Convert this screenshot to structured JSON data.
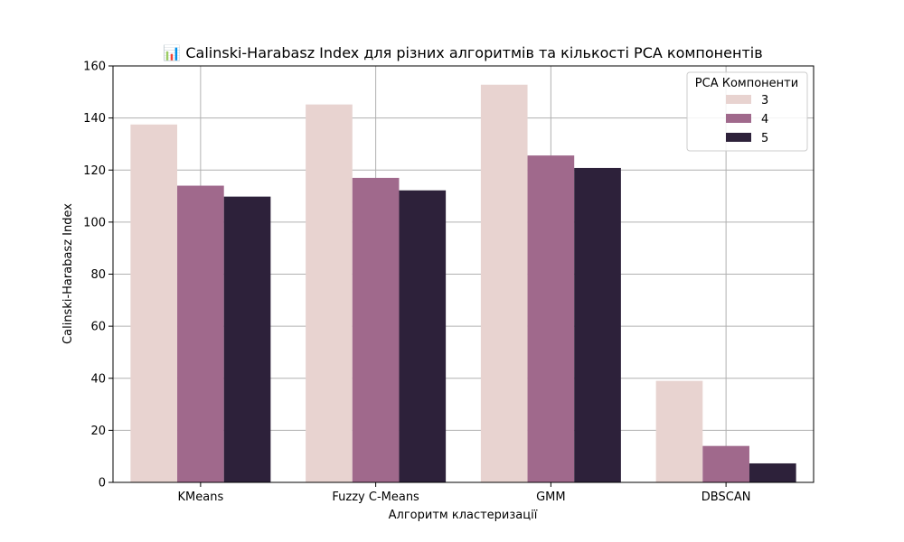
{
  "chart_data": {
    "type": "bar",
    "title": "📊 Calinski-Harabasz Index для різних алгоритмів та кількості PCA компонентів",
    "xlabel": "Алгоритм кластеризації",
    "ylabel": "Calinski-Harabasz Index",
    "categories": [
      "KMeans",
      "Fuzzy C-Means",
      "GMM",
      "DBSCAN"
    ],
    "ylim": [
      0,
      160
    ],
    "yticks": [
      0,
      20,
      40,
      60,
      80,
      100,
      120,
      140,
      160
    ],
    "grid": true,
    "legend": {
      "title": "PCA Компоненти",
      "placement": "top-right"
    },
    "series": [
      {
        "name": "3",
        "color": "#e8d3d0",
        "values": [
          137.5,
          145.2,
          152.8,
          39.0
        ]
      },
      {
        "name": "4",
        "color": "#a0698c",
        "values": [
          114.0,
          117.0,
          125.6,
          14.0
        ]
      },
      {
        "name": "5",
        "color": "#2d213a",
        "values": [
          109.8,
          112.2,
          120.8,
          7.3
        ]
      }
    ]
  }
}
